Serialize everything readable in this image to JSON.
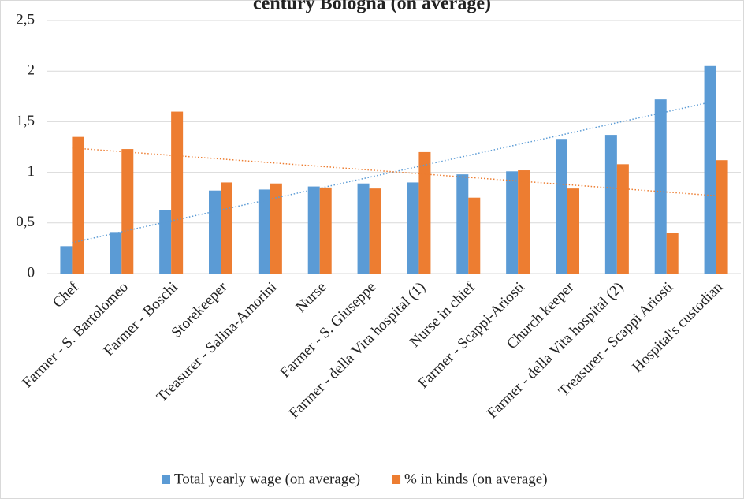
{
  "chart_data": {
    "type": "bar",
    "title": "century Bologna (on average)",
    "categories": [
      "Chef",
      "Farmer - S. Bartolomeo",
      "Farmer - Boschi",
      "Storekeeper",
      "Treasurer - Salina-Amorini",
      "Nurse",
      "Farmer - S. Giuseppe",
      "Farmer - della Vita hospital (1)",
      "Nurse in chief",
      "Farmer - Scappi-Ariosti",
      "Church keeper",
      "Farmer - della Vita hospital (2)",
      "Treasurer - Scappi Ariosti",
      "Hospital's custodian"
    ],
    "series": [
      {
        "name": "Total yearly wage (on average)",
        "color": "#5b9bd5",
        "values": [
          0.27,
          0.41,
          0.63,
          0.82,
          0.83,
          0.86,
          0.89,
          0.9,
          0.98,
          1.01,
          1.33,
          1.37,
          1.72,
          2.05
        ]
      },
      {
        "name": "% in kinds (on average)",
        "color": "#ed7d31",
        "values": [
          1.35,
          1.23,
          1.6,
          0.9,
          0.89,
          0.85,
          0.84,
          1.2,
          0.75,
          1.02,
          0.84,
          1.08,
          0.4,
          1.12
        ]
      }
    ],
    "ylim": [
      0,
      2.5
    ],
    "yticks": [
      0,
      {
        "value": 0.5,
        "label": "0,5"
      },
      1,
      {
        "value": 1.5,
        "label": "1,5"
      },
      2,
      {
        "value": 2.5,
        "label": "2,5"
      }
    ],
    "grid": true,
    "trendline": true,
    "legend": "bottom"
  }
}
